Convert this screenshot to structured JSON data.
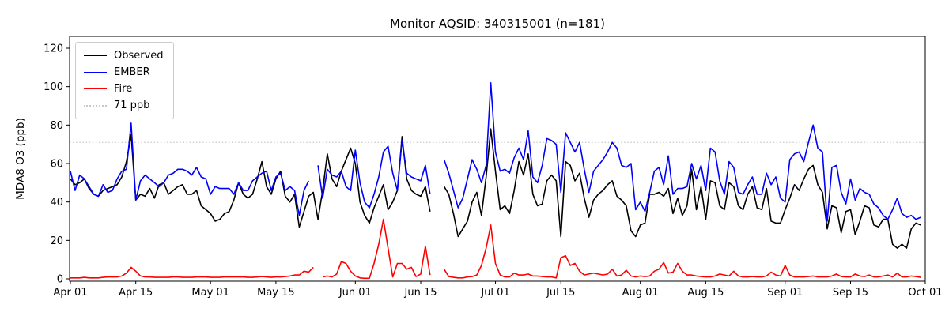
{
  "chart_data": {
    "type": "line",
    "title": "Monitor AQSID: 340315001 (n=181)",
    "ylabel": "MDA8 O3 (ppb)",
    "xlabel": "",
    "n_days": 183,
    "grid": false,
    "legend_position": "upper-left",
    "ylim": [
      0,
      126
    ],
    "y_ticks": [
      0,
      20,
      40,
      60,
      80,
      100,
      120
    ],
    "x_ticks": [
      {
        "label": "Apr 01",
        "day": 0
      },
      {
        "label": "Apr 15",
        "day": 14
      },
      {
        "label": "May 01",
        "day": 30
      },
      {
        "label": "May 15",
        "day": 44
      },
      {
        "label": "Jun 01",
        "day": 61
      },
      {
        "label": "Jun 15",
        "day": 75
      },
      {
        "label": "Jul 01",
        "day": 91
      },
      {
        "label": "Jul 15",
        "day": 105
      },
      {
        "label": "Aug 01",
        "day": 122
      },
      {
        "label": "Aug 15",
        "day": 136
      },
      {
        "label": "Sep 01",
        "day": 153
      },
      {
        "label": "Sep 15",
        "day": 167
      },
      {
        "label": "Oct 01",
        "day": 183
      }
    ],
    "threshold": {
      "value": 71,
      "label": "71 ppb",
      "color": "#c9c9c9",
      "style": "dotted"
    },
    "series": [
      {
        "name": "Observed",
        "color": "#000000",
        "values": [
          52,
          49,
          50,
          52,
          47,
          44,
          43,
          46,
          47,
          48,
          49,
          53,
          61,
          75,
          41,
          44,
          43,
          47,
          42,
          49,
          50,
          44,
          46,
          48,
          49,
          44,
          44,
          46,
          38,
          36,
          34,
          30,
          31,
          34,
          35,
          41,
          50,
          44,
          42,
          44,
          52,
          61,
          48,
          44,
          52,
          56,
          43,
          40,
          44,
          27,
          35,
          43,
          45,
          31,
          46,
          65,
          52,
          48,
          56,
          62,
          68,
          60,
          40,
          33,
          29,
          37,
          43,
          49,
          36,
          40,
          46,
          74,
          52,
          46,
          44,
          43,
          48,
          35,
          null,
          null,
          48,
          44,
          34,
          22,
          26,
          30,
          40,
          45,
          33,
          53,
          78,
          56,
          36,
          38,
          34,
          46,
          61,
          54,
          65,
          44,
          38,
          39,
          51,
          54,
          51,
          22,
          61,
          59,
          51,
          55,
          42,
          32,
          41,
          44,
          46,
          49,
          51,
          43,
          41,
          38,
          25,
          22,
          28,
          29,
          44,
          44,
          45,
          43,
          47,
          34,
          42,
          33,
          38,
          57,
          36,
          48,
          31,
          51,
          50,
          38,
          36,
          50,
          48,
          38,
          36,
          44,
          48,
          37,
          36,
          47,
          30,
          29,
          29,
          36,
          42,
          49,
          46,
          52,
          57,
          59,
          49,
          45,
          26,
          38,
          37,
          24,
          35,
          36,
          23,
          30,
          38,
          37,
          28,
          27,
          31,
          31,
          18,
          16,
          18,
          16,
          26,
          29,
          28
        ]
      },
      {
        "name": "EMBER",
        "color": "#0000ff",
        "values": [
          56,
          46,
          54,
          52,
          48,
          44,
          43,
          49,
          45,
          46,
          52,
          56,
          57,
          81,
          41,
          51,
          54,
          52,
          50,
          48,
          50,
          54,
          55,
          57,
          57,
          56,
          54,
          58,
          53,
          52,
          44,
          48,
          47,
          47,
          47,
          44,
          50,
          46,
          46,
          51,
          53,
          55,
          56,
          46,
          53,
          55,
          46,
          48,
          46,
          33,
          46,
          51,
          null,
          59,
          42,
          57,
          54,
          53,
          56,
          48,
          46,
          67,
          50,
          40,
          37,
          44,
          53,
          66,
          69,
          55,
          46,
          72,
          55,
          53,
          52,
          51,
          59,
          44,
          null,
          null,
          62,
          55,
          46,
          37,
          42,
          52,
          62,
          57,
          50,
          59,
          102,
          66,
          56,
          57,
          55,
          63,
          68,
          62,
          77,
          53,
          50,
          59,
          73,
          72,
          70,
          45,
          76,
          71,
          66,
          71,
          57,
          45,
          56,
          59,
          62,
          66,
          71,
          68,
          59,
          58,
          60,
          36,
          40,
          35,
          45,
          56,
          58,
          49,
          64,
          44,
          47,
          47,
          48,
          60,
          52,
          59,
          46,
          68,
          66,
          51,
          44,
          61,
          58,
          45,
          44,
          49,
          53,
          44,
          44,
          55,
          49,
          53,
          42,
          40,
          62,
          65,
          66,
          61,
          71,
          80,
          68,
          66,
          30,
          58,
          59,
          45,
          39,
          52,
          41,
          47,
          45,
          44,
          39,
          37,
          33,
          31,
          36,
          42,
          34,
          32,
          33,
          31,
          32
        ]
      },
      {
        "name": "Fire",
        "color": "#ff0000",
        "values": [
          0.5,
          0.5,
          0.5,
          0.8,
          0.5,
          0.5,
          0.5,
          0.8,
          1,
          1,
          1,
          1.5,
          3,
          6,
          4,
          1.5,
          1,
          1,
          0.8,
          0.8,
          0.8,
          0.8,
          1,
          1,
          0.8,
          0.8,
          0.8,
          1,
          1,
          1,
          0.8,
          0.8,
          0.8,
          1,
          1,
          1,
          1,
          1,
          0.8,
          0.8,
          1,
          1.2,
          1,
          0.8,
          1,
          1,
          1.2,
          1.5,
          2,
          2,
          4,
          3.5,
          6,
          null,
          1,
          1.5,
          1,
          2.5,
          9,
          8,
          4,
          1.5,
          0.5,
          0.3,
          0.3,
          8,
          18,
          31,
          16,
          1,
          8,
          8,
          5,
          6,
          1.2,
          2.5,
          17,
          2,
          null,
          null,
          5,
          1.2,
          0.8,
          0.5,
          0.5,
          1,
          1.2,
          2,
          7,
          16,
          28,
          8,
          2,
          1,
          1,
          3,
          2,
          2,
          2.5,
          1.5,
          1.5,
          1.2,
          1,
          1,
          0.5,
          11,
          12,
          7,
          8,
          4,
          2,
          2.5,
          3,
          2.5,
          2,
          2.5,
          5,
          1.5,
          2,
          4.5,
          1.5,
          1,
          1.5,
          1.2,
          1.5,
          4,
          5,
          8.5,
          3,
          3.5,
          8,
          4,
          2,
          2,
          1.5,
          1.2,
          1,
          1,
          1.5,
          2.5,
          2,
          1.5,
          4,
          1.5,
          1,
          1,
          1.2,
          1,
          1,
          1.5,
          3.5,
          2,
          1.5,
          7,
          2,
          1,
          1,
          1,
          1.2,
          1.5,
          1,
          1,
          1,
          1.5,
          2.5,
          1.2,
          1,
          1,
          2.5,
          1.5,
          1.2,
          2,
          1,
          1,
          1.5,
          2,
          1,
          3,
          1,
          1,
          1.5,
          1.2,
          0.8
        ]
      }
    ]
  }
}
